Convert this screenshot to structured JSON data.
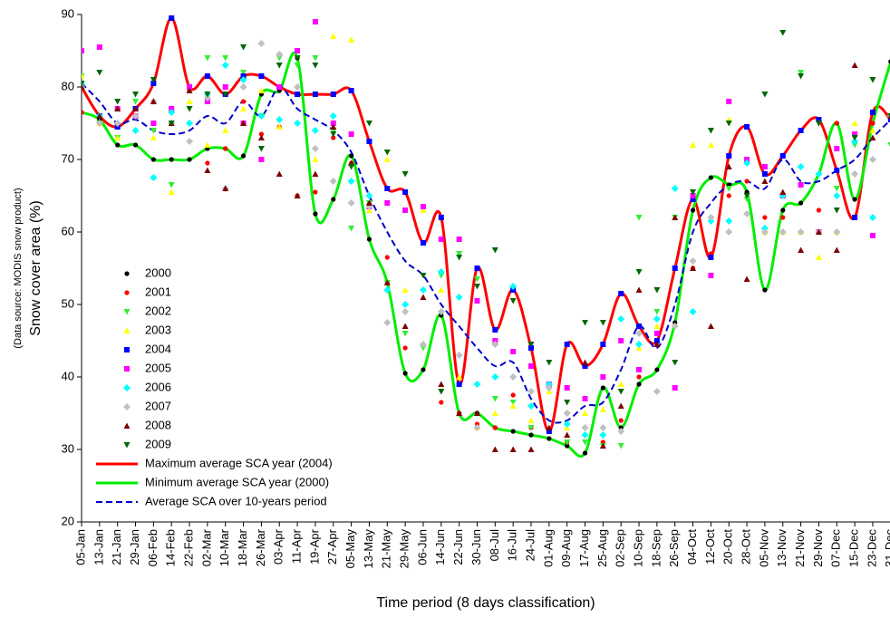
{
  "chart_data": {
    "type": "scatter",
    "y_label": "Snow cover area (%)",
    "y_label_note": "(Data source: MODIS snow product)",
    "x_label": "Time period (8 days classification)",
    "ylim": [
      20,
      90
    ],
    "yticks": [
      20,
      30,
      40,
      50,
      60,
      70,
      80,
      90
    ],
    "categories": [
      "05-Jan",
      "13-Jan",
      "21-Jan",
      "29-Jan",
      "06-Feb",
      "14-Feb",
      "22-Feb",
      "02-Mar",
      "10-Mar",
      "18-Mar",
      "26-Mar",
      "03-Apr",
      "11-Apr",
      "19-Apr",
      "27-Apr",
      "05-May",
      "13-May",
      "21-May",
      "29-May",
      "06-Jun",
      "14-Jun",
      "22-Jun",
      "30-Jun",
      "08-Jul",
      "16-Jul",
      "24-Jul",
      "01-Aug",
      "09-Aug",
      "17-Aug",
      "25-Aug",
      "02-Sep",
      "10-Sep",
      "18-Sep",
      "26-Sep",
      "04-Oct",
      "12-Oct",
      "20-Oct",
      "28-Oct",
      "05-Nov",
      "13-Nov",
      "21-Nov",
      "29-Nov",
      "07-Dec",
      "15-Dec",
      "23-Dec",
      "31-Dec"
    ],
    "series": [
      {
        "name": "2000",
        "type": "scatter",
        "marker": "circle",
        "color": "#000000",
        "values": [
          76.5,
          75.5,
          72,
          72,
          70,
          70,
          70,
          71.5,
          71.5,
          70.5,
          79,
          79.5,
          84,
          62.5,
          64.5,
          70.5,
          59,
          53,
          40.5,
          41,
          48.5,
          35,
          35,
          33,
          32.5,
          32,
          31.5,
          30.5,
          29.5,
          38.5,
          33,
          39,
          41,
          47.5,
          63,
          67.5,
          66.5,
          65.5,
          52,
          63,
          64,
          68,
          75,
          64.5,
          75,
          83.5
        ]
      },
      {
        "name": "2001",
        "type": "scatter",
        "marker": "circle",
        "color": "#ff0000",
        "values": [
          76.5,
          75,
          75,
          77,
          78,
          75,
          79.5,
          69.5,
          71.5,
          78,
          73.5,
          74.5,
          65,
          65.5,
          73,
          69.5,
          64,
          56.5,
          44,
          52,
          36.5,
          35,
          33.5,
          33,
          37.5,
          33,
          32.5,
          31,
          37,
          31,
          34,
          40,
          48,
          55,
          55,
          57,
          65,
          67,
          62,
          62,
          60,
          63,
          75,
          62,
          75,
          76
        ]
      },
      {
        "name": "2002",
        "type": "scatter",
        "marker": "tri-down",
        "color": "#33ee33",
        "values": [
          81.5,
          75,
          73,
          78,
          74,
          66.5,
          77,
          84,
          84,
          82,
          76,
          84,
          83,
          84,
          74,
          60.5,
          64,
          53,
          46,
          44,
          54,
          57,
          53.5,
          37,
          36.5,
          33,
          32.5,
          31,
          31,
          30.5,
          30.5,
          62,
          49,
          62,
          65,
          74,
          66,
          64.5,
          79,
          87.5,
          82,
          75,
          66,
          72,
          81,
          72
        ]
      },
      {
        "name": "2003",
        "type": "scatter",
        "marker": "tri-up",
        "color": "#ffff00",
        "values": [
          81.5,
          75,
          73,
          77,
          73,
          65.5,
          78,
          72,
          74,
          77,
          79.5,
          74.5,
          85,
          70,
          87,
          86.5,
          63,
          70,
          52,
          63,
          52,
          40,
          33,
          35,
          36,
          34,
          38,
          33,
          35,
          35.5,
          39,
          44,
          47,
          55,
          72,
          72,
          75.5,
          70,
          60,
          60,
          60,
          56.5,
          60,
          75,
          74,
          76
        ]
      },
      {
        "name": "2004",
        "type": "scatter",
        "marker": "square",
        "color": "#0000ff",
        "values": [
          80,
          76,
          74.5,
          77,
          80.5,
          89.5,
          80,
          81.5,
          79,
          81.5,
          81.5,
          80,
          79,
          79,
          79,
          79.5,
          72.5,
          66,
          65.5,
          58.5,
          62,
          39,
          55,
          46.5,
          52,
          44,
          32.5,
          44.5,
          41.5,
          44.5,
          51.5,
          47,
          45,
          55,
          64.5,
          56.5,
          70.5,
          74.5,
          68,
          70.5,
          74,
          75.5,
          68.5,
          62,
          76.5,
          75.5
        ]
      },
      {
        "name": "2005",
        "type": "scatter",
        "marker": "square",
        "color": "#ff00ff",
        "values": [
          85,
          85.5,
          77,
          76,
          75,
          77,
          80,
          78,
          80,
          75,
          70,
          80,
          85,
          89,
          75,
          73.5,
          63.5,
          64,
          63,
          63.5,
          59,
          59,
          50.5,
          45,
          43.5,
          41.5,
          39,
          38.5,
          37,
          40,
          45,
          41,
          46,
          38.5,
          65,
          54,
          78,
          70,
          69,
          65,
          66.5,
          60,
          71.5,
          73.5,
          59.5,
          76
        ]
      },
      {
        "name": "2006",
        "type": "scatter",
        "marker": "diamond",
        "color": "#00ffff",
        "values": [
          80.5,
          76,
          75,
          74,
          67.5,
          76.5,
          75,
          79,
          83,
          81,
          76,
          75.5,
          75,
          74,
          76,
          67,
          65,
          52,
          50,
          52,
          54.5,
          51,
          39,
          40,
          52.5,
          36,
          39,
          33.5,
          32,
          32,
          48,
          44.5,
          48,
          66,
          49,
          61.5,
          61.5,
          69.5,
          60.5,
          65,
          69,
          68,
          65,
          72.5,
          62,
          76
        ]
      },
      {
        "name": "2007",
        "type": "scatter",
        "marker": "diamond",
        "color": "#c0c0c0",
        "values": [
          80,
          75,
          75,
          76,
          78,
          75,
          72.5,
          78.5,
          66,
          80,
          86,
          84.5,
          80,
          71.5,
          67,
          64,
          63.5,
          47.5,
          49,
          44.5,
          49,
          43,
          33,
          44.5,
          40,
          38,
          38.5,
          35,
          33,
          33,
          32.5,
          46,
          38,
          47,
          56,
          62,
          60,
          62.5,
          60,
          60,
          60,
          60,
          60,
          68,
          70,
          76
        ]
      },
      {
        "name": "2008",
        "type": "scatter",
        "marker": "tri-up",
        "color": "#800000",
        "values": [
          80,
          76,
          77,
          77,
          78,
          75,
          79.5,
          68.5,
          66,
          75,
          73,
          68,
          65,
          68,
          74.5,
          69.5,
          64,
          53,
          47,
          51,
          39,
          35,
          35,
          30,
          30,
          30,
          33,
          32,
          42,
          30.5,
          36,
          52,
          44.5,
          62,
          55,
          47,
          69,
          53.5,
          67,
          65.5,
          57.5,
          60,
          57.5,
          83,
          73,
          76
        ]
      },
      {
        "name": "2009",
        "type": "scatter",
        "marker": "tri-down",
        "color": "#006600",
        "values": [
          80.5,
          82,
          78,
          79,
          81,
          75,
          77,
          79,
          79,
          85.5,
          71.5,
          83,
          84,
          83,
          73.5,
          69,
          75,
          71,
          68,
          54,
          38,
          56.5,
          52.5,
          57.5,
          50.5,
          44.5,
          42,
          36.5,
          47.5,
          47.5,
          38,
          54.5,
          52,
          42,
          65.5,
          74,
          75,
          65,
          79,
          87.5,
          81.5,
          75,
          63,
          73,
          81,
          76
        ]
      },
      {
        "name": "Maximum average SCA year (2004)",
        "type": "line",
        "color": "#ff0000",
        "width": 3,
        "values": [
          80,
          76,
          74.5,
          77,
          80.5,
          89.5,
          80,
          81.5,
          79,
          81.5,
          81.5,
          80,
          79,
          79,
          79,
          79.5,
          72.5,
          66,
          65.5,
          58.5,
          62,
          39,
          55,
          46.5,
          52,
          44,
          32.5,
          44.5,
          41.5,
          44.5,
          51.5,
          47,
          45,
          55,
          64.5,
          56.5,
          70.5,
          74.5,
          68,
          70.5,
          74,
          75.5,
          68.5,
          62,
          76.5,
          75.5
        ]
      },
      {
        "name": "Minimum average SCA year (2000)",
        "type": "line",
        "color": "#00ee00",
        "width": 3,
        "values": [
          76.5,
          75.5,
          72,
          72,
          70,
          70,
          70,
          71.5,
          71.5,
          70.5,
          79,
          79.5,
          84,
          62.5,
          64.5,
          70.5,
          59,
          53,
          40.5,
          41,
          48.5,
          35,
          35,
          33,
          32.5,
          32,
          31.5,
          30.5,
          29.5,
          38.5,
          33,
          39,
          41,
          47.5,
          63,
          67.5,
          66.5,
          65.5,
          52,
          63,
          64,
          68,
          75,
          64.5,
          75,
          83.5
        ]
      },
      {
        "name": "Average SCA over 10-years period",
        "type": "line",
        "color": "#0000cc",
        "width": 2,
        "dash": true,
        "values": [
          80.5,
          78,
          75,
          75.5,
          74,
          73.5,
          74,
          76,
          75,
          78,
          76,
          80,
          77,
          75.5,
          74,
          71,
          65,
          60,
          56,
          54,
          50,
          47,
          44,
          41.5,
          42,
          37,
          34,
          34,
          36,
          36.5,
          41,
          47,
          44,
          50,
          60,
          64,
          66.5,
          67,
          66,
          70,
          67,
          67,
          68.5,
          70,
          73,
          75.5
        ]
      }
    ]
  }
}
